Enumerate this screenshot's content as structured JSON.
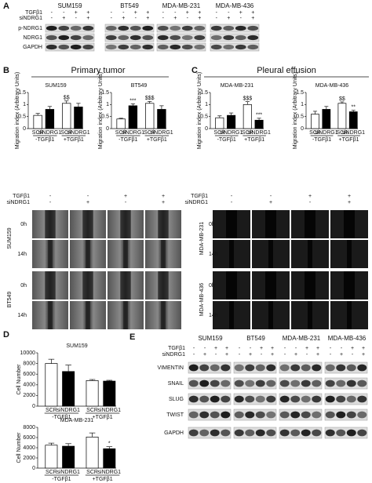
{
  "panels": {
    "a": {
      "label": "A",
      "cell_lines": [
        "SUM159",
        "BT549",
        "MDA-MB-231",
        "MDA-MB-436"
      ],
      "treatments": [
        "TGFβ1",
        "siNDRG1"
      ],
      "signs": [
        [
          "-",
          "-",
          "+",
          "+"
        ],
        [
          "-",
          "+",
          "-",
          "+"
        ]
      ],
      "rows": [
        "p-NDRG1",
        "NDRG1",
        "GAPDH"
      ]
    },
    "b": {
      "label": "B",
      "title": "Primary tumor"
    },
    "c": {
      "label": "C",
      "title": "Pleural effusion"
    },
    "scratch": {
      "left_lines": [
        "SUM159",
        "BT549"
      ],
      "right_lines": [
        "MDA-MB-231",
        "MDA-MB-436"
      ],
      "times": [
        "0h",
        "14h"
      ]
    },
    "d": {
      "label": "D"
    },
    "e": {
      "label": "E",
      "cell_lines": [
        "SUM159",
        "BT549",
        "MDA-MB-231",
        "MDA-MB-436"
      ],
      "rows": [
        "VIMENTIN",
        "SNAIL",
        "SLUG",
        "TWIST",
        "GAPDH"
      ]
    }
  },
  "chart_data": [
    {
      "type": "bar",
      "title": "SUM159",
      "ylabel": "Migration index (Arbitrary Units)",
      "categories": [
        "SCR",
        "siNDRG1",
        "SCR",
        "siNDRG1"
      ],
      "groups": [
        "-TGFβ1",
        "+TGFβ1"
      ],
      "values": [
        0.55,
        0.8,
        1.05,
        0.9
      ],
      "errors": [
        0.08,
        0.12,
        0.1,
        0.15
      ],
      "annotations": [
        null,
        null,
        "$$",
        null
      ],
      "colors": [
        "#ffffff",
        "#000000",
        "#ffffff",
        "#000000"
      ],
      "ylim": [
        0,
        1.5
      ],
      "yticks": [
        0,
        0.5,
        1,
        1.5
      ]
    },
    {
      "type": "bar",
      "title": "BT549",
      "ylabel": "Migration index (Arbitrary Units)",
      "categories": [
        "SCR",
        "siNDRG1",
        "SCR",
        "siNDRG1"
      ],
      "groups": [
        "-TGFβ1",
        "+TGFβ1"
      ],
      "values": [
        0.4,
        0.95,
        1.05,
        0.8
      ],
      "errors": [
        0.03,
        0.08,
        0.08,
        0.15
      ],
      "annotations": [
        null,
        "***",
        "$$$",
        null
      ],
      "colors": [
        "#ffffff",
        "#000000",
        "#ffffff",
        "#000000"
      ],
      "ylim": [
        0,
        1.5
      ],
      "yticks": [
        0,
        0.5,
        1,
        1.5
      ]
    },
    {
      "type": "bar",
      "title": "MDA-MB-231",
      "ylabel": "Migration index (Arbitrary Units)",
      "categories": [
        "SCR",
        "siNDRG1",
        "SCR",
        "siNDRG1"
      ],
      "groups": [
        "-TGFβ1",
        "+TGFβ1"
      ],
      "values": [
        0.45,
        0.55,
        1.0,
        0.35
      ],
      "errors": [
        0.08,
        0.1,
        0.12,
        0.08
      ],
      "annotations": [
        null,
        null,
        "$$$",
        "***"
      ],
      "colors": [
        "#ffffff",
        "#000000",
        "#ffffff",
        "#000000"
      ],
      "ylim": [
        0,
        1.5
      ],
      "yticks": [
        0,
        0.5,
        1,
        1.5
      ]
    },
    {
      "type": "bar",
      "title": "MDA-MB-436",
      "ylabel": "Migration index (Arbitrary Units)",
      "categories": [
        "SCR",
        "siNDRG1",
        "SCR",
        "siNDRG1"
      ],
      "groups": [
        "-TGFβ1",
        "+TGFβ1"
      ],
      "values": [
        0.6,
        0.8,
        1.05,
        0.7
      ],
      "errors": [
        0.12,
        0.12,
        0.06,
        0.06
      ],
      "annotations": [
        null,
        null,
        "$$",
        "**"
      ],
      "colors": [
        "#ffffff",
        "#000000",
        "#ffffff",
        "#000000"
      ],
      "ylim": [
        0,
        1.5
      ],
      "yticks": [
        0,
        0.5,
        1,
        1.5
      ]
    },
    {
      "type": "bar",
      "title": "SUM159",
      "ylabel": "Cell Number",
      "categories": [
        "SCR",
        "siNDRG1",
        "SCR",
        "siNDRG1"
      ],
      "groups": [
        "-TGFβ1",
        "+TGFβ1"
      ],
      "values": [
        8000,
        6500,
        4800,
        4700
      ],
      "errors": [
        800,
        1200,
        200,
        150
      ],
      "annotations": [
        null,
        null,
        null,
        null
      ],
      "colors": [
        "#ffffff",
        "#000000",
        "#ffffff",
        "#000000"
      ],
      "ylim": [
        0,
        10000
      ],
      "yticks": [
        0,
        2000,
        4000,
        6000,
        8000,
        10000
      ]
    },
    {
      "type": "bar",
      "title": "MDA-MB-231",
      "ylabel": "Cell Number",
      "categories": [
        "SCR",
        "siNDRG1",
        "SCR",
        "siNDRG1"
      ],
      "groups": [
        "-TGFβ1",
        "+TGFβ1"
      ],
      "values": [
        4500,
        4300,
        6100,
        3800
      ],
      "errors": [
        400,
        500,
        800,
        400
      ],
      "annotations": [
        null,
        null,
        null,
        "*"
      ],
      "colors": [
        "#ffffff",
        "#000000",
        "#ffffff",
        "#000000"
      ],
      "ylim": [
        0,
        8000
      ],
      "yticks": [
        0,
        2000,
        4000,
        6000,
        8000
      ]
    }
  ]
}
